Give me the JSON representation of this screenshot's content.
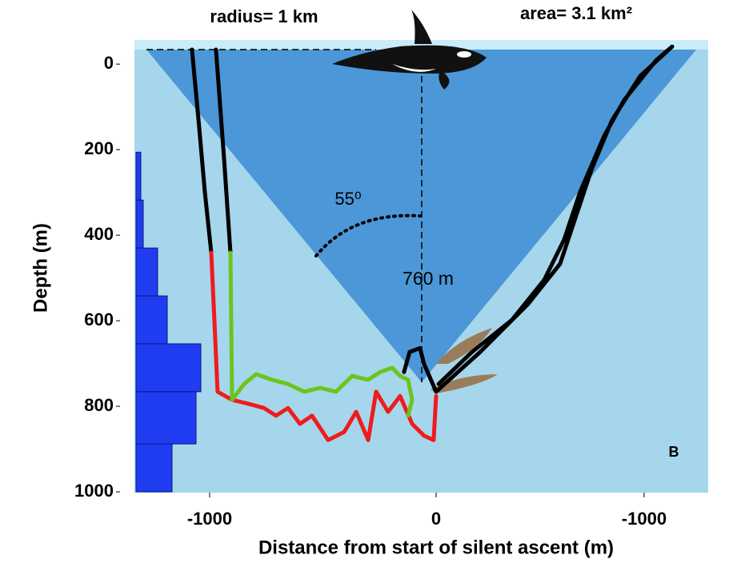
{
  "chart_data": {
    "type": "line",
    "x_label": "Distance from start of silent ascent (m)",
    "y_label": "Depth (m)",
    "annotations": {
      "radius": "radius= 1 km",
      "area": "area= 3.1 km²",
      "angle": "55⁰",
      "depth": "760 m",
      "panel": "B"
    },
    "xlim": [
      -1332,
      1201
    ],
    "xticks": [
      -1000,
      0
    ],
    "x2lim": [
      1450,
      -1308
    ],
    "x2ticks": [
      -1000
    ],
    "ylim": [
      1000,
      -47
    ],
    "yticks": [
      0,
      200,
      400,
      600,
      800,
      1000
    ],
    "histogram": {
      "color": "#1f3cf0",
      "bins": [
        206,
        318,
        430,
        542,
        654,
        766,
        888,
        1000
      ],
      "values": [
        1,
        1.5,
        4.5,
        6.5,
        13.5,
        12.5,
        7.5
      ],
      "xlim": [
        0,
        15
      ]
    },
    "series": [
      {
        "color": "#000000",
        "x": [
          -1078,
          -1049,
          -1021,
          -993
        ],
        "values": [
          -34,
          131,
          299,
          441
        ]
      },
      {
        "color": "#ee1c1c",
        "x": [
          -993,
          -979,
          -965,
          -901,
          -830,
          -760,
          -707,
          -654,
          -601,
          -548,
          -477,
          -406,
          -353,
          -300,
          -265,
          -212,
          -159,
          -106,
          -53,
          -11,
          0
        ],
        "values": [
          441,
          598,
          766,
          785,
          794,
          804,
          822,
          804,
          841,
          822,
          879,
          860,
          813,
          879,
          766,
          813,
          776,
          841,
          869,
          879,
          776
        ]
      },
      {
        "color": "#000000",
        "x": [
          -972,
          -936,
          -908
        ],
        "values": [
          -34,
          224,
          441
        ]
      },
      {
        "color": "#6cc41c",
        "x": [
          -908,
          -901,
          -848,
          -795,
          -724,
          -654,
          -583,
          -512,
          -442,
          -371,
          -300,
          -247,
          -194,
          -159,
          -124,
          -106,
          -124
        ],
        "values": [
          441,
          785,
          748,
          725,
          738,
          748,
          766,
          757,
          766,
          729,
          738,
          720,
          710,
          729,
          738,
          785,
          822
        ]
      },
      {
        "color": "#000000",
        "xaxis": "x2",
        "x": [
          154,
          127,
          77,
          58,
          0,
          -212,
          -442,
          -596,
          -673,
          -750,
          -846,
          -981,
          -1135,
          -1058,
          -904,
          -808,
          -692,
          -615,
          -519,
          -365,
          -173,
          -12
        ],
        "values": [
          720,
          673,
          664,
          701,
          766,
          673,
          561,
          467,
          355,
          243,
          131,
          28,
          -41,
          -9,
          84,
          168,
          299,
          411,
          505,
          598,
          673,
          748
        ]
      }
    ]
  }
}
